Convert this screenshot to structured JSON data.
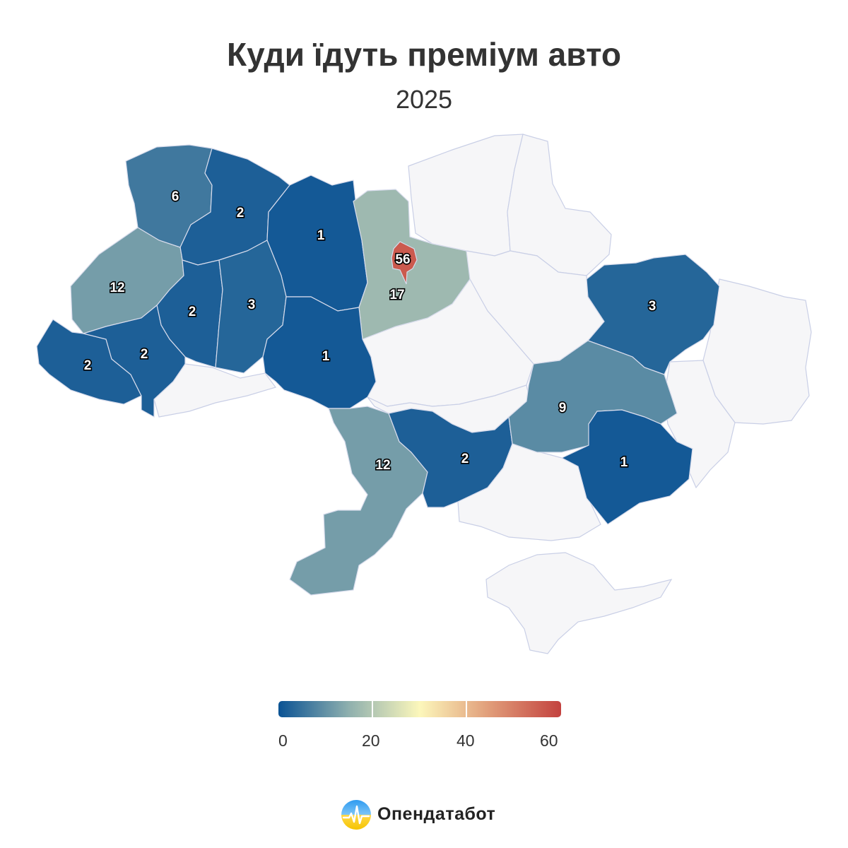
{
  "title": "Куди їдуть преміум авто",
  "subtitle": "2025",
  "scale": {
    "min": 0,
    "max": 60,
    "stops": [
      "#0b5394",
      "#8fb0ae",
      "#fcf7bb",
      "#e09b78",
      "#c3423f"
    ],
    "ticks": [
      "0",
      "20",
      "40",
      "60"
    ],
    "tick_values": [
      0,
      20,
      40,
      60
    ]
  },
  "nodata_color": "#f6f6f8",
  "regions": [
    {
      "id": "volyn",
      "value": 6,
      "label": "6"
    },
    {
      "id": "rivne",
      "value": 2,
      "label": "2"
    },
    {
      "id": "zhytomyr",
      "value": 1,
      "label": "1"
    },
    {
      "id": "kyiv-oblast",
      "value": 17,
      "label": "17"
    },
    {
      "id": "kyiv-city",
      "value": 56,
      "label": "56"
    },
    {
      "id": "lviv",
      "value": 12,
      "label": "12"
    },
    {
      "id": "ternopil",
      "value": 2,
      "label": "2"
    },
    {
      "id": "khmelnytskyi",
      "value": 3,
      "label": "3"
    },
    {
      "id": "vinnytsia",
      "value": 1,
      "label": "1"
    },
    {
      "id": "zakarpattia",
      "value": 2,
      "label": "2"
    },
    {
      "id": "ivano-frankivsk",
      "value": 2,
      "label": "2"
    },
    {
      "id": "odesa",
      "value": 12,
      "label": "12"
    },
    {
      "id": "mykolaiv",
      "value": 2,
      "label": "2"
    },
    {
      "id": "kharkiv",
      "value": 3,
      "label": "3"
    },
    {
      "id": "dnipropetrovsk",
      "value": 9,
      "label": "9"
    },
    {
      "id": "zaporizhzhia",
      "value": 1,
      "label": "1"
    }
  ],
  "brand": {
    "name": "Опендатабот",
    "logo": "opendatabot-logo-icon"
  }
}
